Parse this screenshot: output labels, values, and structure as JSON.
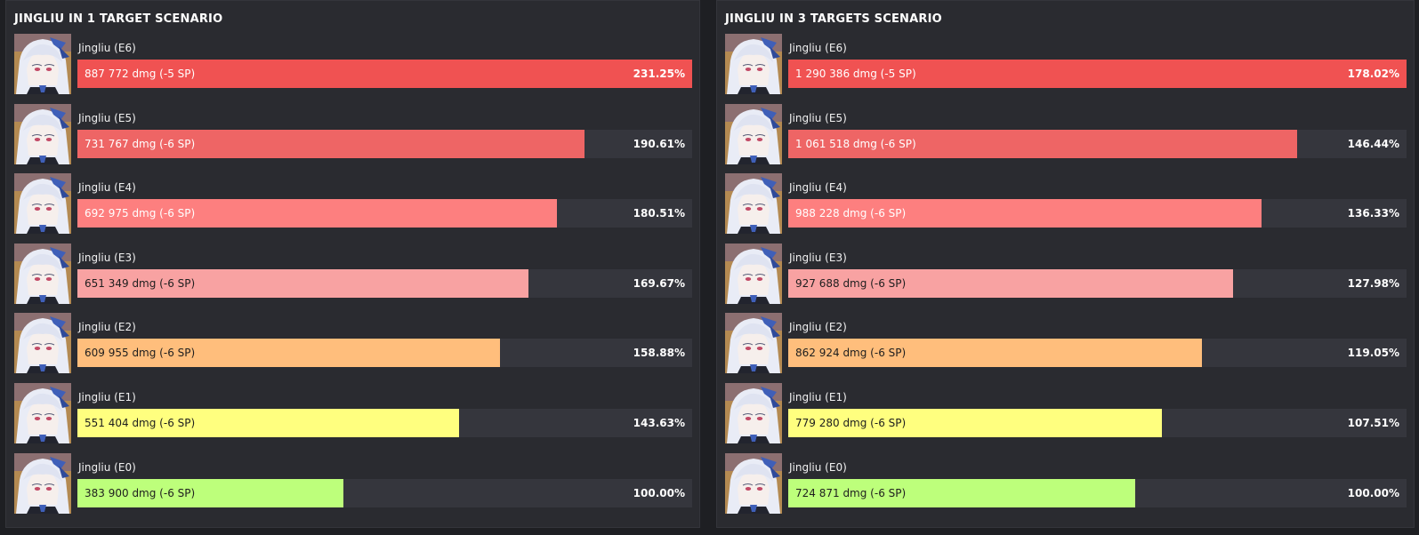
{
  "colors": {
    "E6": "#f05252",
    "E5": "#ee6565",
    "E4": "#fd7f7f",
    "E3": "#f8a2a2",
    "E2": "#ffbe7c",
    "E1": "#ffff7f",
    "E0": "#bdff7b",
    "track": "#35363d",
    "panel": "#2a2b30"
  },
  "avatar_icon": "jingliu-portrait-icon",
  "chart_data": [
    {
      "type": "bar",
      "orientation": "horizontal",
      "title": "JINGLIU IN 1 TARGET SCENARIO",
      "xlim": [
        0,
        231.25
      ],
      "rows": [
        {
          "name": "Jingliu (E6)",
          "label": "887 772 dmg (-5 SP)",
          "pct": "231.25%",
          "value": 231.25,
          "color_key": "E6",
          "text_color": "#ffffff"
        },
        {
          "name": "Jingliu (E5)",
          "label": "731 767 dmg (-6 SP)",
          "pct": "190.61%",
          "value": 190.61,
          "color_key": "E5",
          "text_color": "#ffffff"
        },
        {
          "name": "Jingliu (E4)",
          "label": "692 975 dmg (-6 SP)",
          "pct": "180.51%",
          "value": 180.51,
          "color_key": "E4",
          "text_color": "#ffffff"
        },
        {
          "name": "Jingliu (E3)",
          "label": "651 349 dmg (-6 SP)",
          "pct": "169.67%",
          "value": 169.67,
          "color_key": "E3",
          "text_color": "#1e1e1e"
        },
        {
          "name": "Jingliu (E2)",
          "label": "609 955 dmg (-6 SP)",
          "pct": "158.88%",
          "value": 158.88,
          "color_key": "E2",
          "text_color": "#1e1e1e"
        },
        {
          "name": "Jingliu (E1)",
          "label": "551 404 dmg (-6 SP)",
          "pct": "143.63%",
          "value": 143.63,
          "color_key": "E1",
          "text_color": "#1e1e1e"
        },
        {
          "name": "Jingliu (E0)",
          "label": "383 900 dmg (-6 SP)",
          "pct": "100.00%",
          "value": 100.0,
          "color_key": "E0",
          "text_color": "#1e1e1e"
        }
      ]
    },
    {
      "type": "bar",
      "orientation": "horizontal",
      "title": "JINGLIU IN 3 TARGETS SCENARIO",
      "xlim": [
        0,
        178.02
      ],
      "rows": [
        {
          "name": "Jingliu (E6)",
          "label": "1 290 386 dmg (-5 SP)",
          "pct": "178.02%",
          "value": 178.02,
          "color_key": "E6",
          "text_color": "#ffffff"
        },
        {
          "name": "Jingliu (E5)",
          "label": "1 061 518 dmg (-6 SP)",
          "pct": "146.44%",
          "value": 146.44,
          "color_key": "E5",
          "text_color": "#ffffff"
        },
        {
          "name": "Jingliu (E4)",
          "label": "988 228 dmg (-6 SP)",
          "pct": "136.33%",
          "value": 136.33,
          "color_key": "E4",
          "text_color": "#ffffff"
        },
        {
          "name": "Jingliu (E3)",
          "label": "927 688 dmg (-6 SP)",
          "pct": "127.98%",
          "value": 127.98,
          "color_key": "E3",
          "text_color": "#1e1e1e"
        },
        {
          "name": "Jingliu (E2)",
          "label": "862 924 dmg (-6 SP)",
          "pct": "119.05%",
          "value": 119.05,
          "color_key": "E2",
          "text_color": "#1e1e1e"
        },
        {
          "name": "Jingliu (E1)",
          "label": "779 280 dmg (-6 SP)",
          "pct": "107.51%",
          "value": 107.51,
          "color_key": "E1",
          "text_color": "#1e1e1e"
        },
        {
          "name": "Jingliu (E0)",
          "label": "724 871 dmg (-6 SP)",
          "pct": "100.00%",
          "value": 100.0,
          "color_key": "E0",
          "text_color": "#1e1e1e"
        }
      ]
    }
  ]
}
